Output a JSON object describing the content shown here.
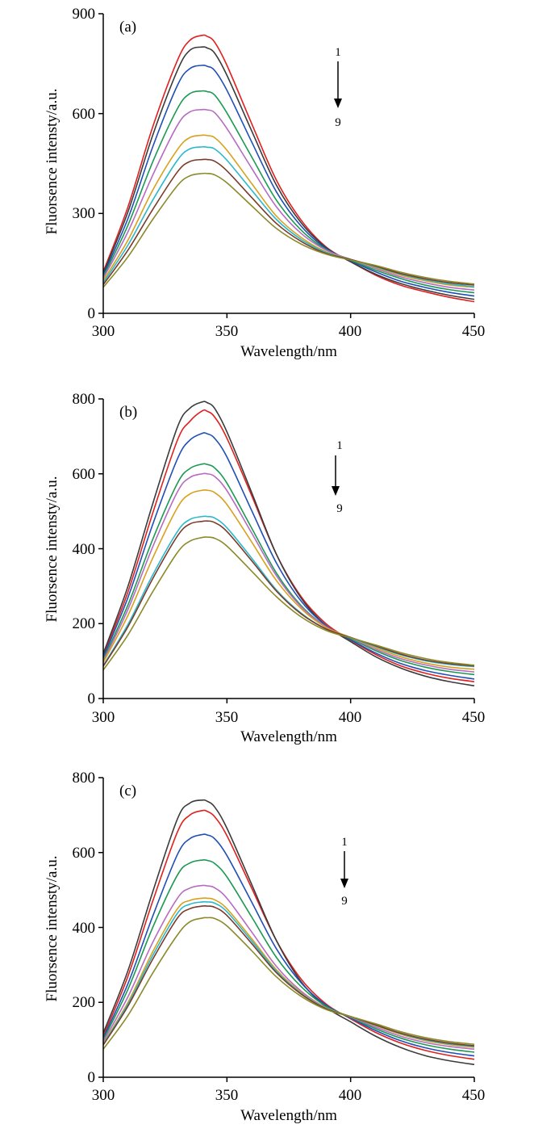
{
  "colors": [
    "#e0201f",
    "#3b3b3b",
    "#1f4fb5",
    "#1c9a52",
    "#b76ac2",
    "#d8a11d",
    "#2bb8cc",
    "#7a3b2a",
    "#8a8a2a"
  ],
  "chart_data": [
    {
      "type": "line",
      "panel_label": "(a)",
      "xlabel": "Wavelength/nm",
      "ylabel": "Fluorsence intensty/a.u.",
      "xlim": [
        300,
        450
      ],
      "ylim": [
        0,
        900
      ],
      "xticks": [
        "300",
        "350",
        "400",
        "450"
      ],
      "yticks": [
        "0",
        "300",
        "600",
        "900"
      ],
      "arrow": {
        "start": "1",
        "end": "9"
      },
      "x": [
        300,
        310,
        320,
        330,
        335,
        340,
        342,
        345,
        350,
        360,
        370,
        380,
        390,
        400,
        410,
        420,
        430,
        440,
        450
      ],
      "series": [
        {
          "values": [
            125,
            320,
            560,
            760,
            820,
            835,
            832,
            815,
            745,
            570,
            400,
            280,
            200,
            155,
            115,
            85,
            65,
            48,
            35
          ]
        },
        {
          "values": [
            120,
            305,
            535,
            730,
            790,
            800,
            797,
            782,
            715,
            548,
            385,
            272,
            198,
            155,
            118,
            90,
            70,
            54,
            42
          ]
        },
        {
          "values": [
            115,
            285,
            500,
            685,
            735,
            745,
            742,
            730,
            670,
            515,
            365,
            262,
            195,
            158,
            125,
            97,
            78,
            63,
            52
          ]
        },
        {
          "values": [
            110,
            265,
            455,
            615,
            660,
            668,
            666,
            656,
            602,
            470,
            340,
            250,
            192,
            160,
            130,
            105,
            85,
            71,
            62
          ]
        },
        {
          "values": [
            105,
            245,
            415,
            565,
            605,
            612,
            611,
            603,
            555,
            436,
            320,
            240,
            190,
            162,
            135,
            110,
            92,
            78,
            70
          ]
        },
        {
          "values": [
            98,
            220,
            370,
            492,
            528,
            535,
            534,
            528,
            490,
            390,
            292,
            228,
            185,
            162,
            138,
            115,
            98,
            85,
            78
          ]
        },
        {
          "values": [
            92,
            205,
            340,
            460,
            494,
            500,
            499,
            494,
            460,
            370,
            282,
            222,
            183,
            162,
            140,
            118,
            101,
            88,
            80
          ]
        },
        {
          "values": [
            86,
            190,
            312,
            425,
            456,
            462,
            462,
            457,
            428,
            348,
            270,
            216,
            180,
            162,
            142,
            120,
            104,
            92,
            85
          ]
        },
        {
          "values": [
            78,
            170,
            282,
            384,
            413,
            420,
            420,
            416,
            392,
            323,
            255,
            208,
            178,
            160,
            144,
            124,
            108,
            96,
            88
          ]
        }
      ]
    },
    {
      "type": "line",
      "panel_label": "(b)",
      "xlabel": "Wavelength/nm",
      "ylabel": "Fluorsence intensty/a.u.",
      "xlim": [
        300,
        450
      ],
      "ylim": [
        0,
        800
      ],
      "xticks": [
        "300",
        "350",
        "400",
        "450"
      ],
      "yticks": [
        "0",
        "200",
        "400",
        "600",
        "800"
      ],
      "arrow": {
        "start": "1",
        "end": "9"
      },
      "x": [
        300,
        310,
        320,
        330,
        335,
        340,
        342,
        345,
        350,
        360,
        370,
        380,
        390,
        400,
        410,
        420,
        430,
        440,
        450
      ],
      "series": [
        {
          "values": [
            115,
            285,
            495,
            690,
            740,
            768,
            767,
            752,
            695,
            542,
            385,
            272,
            200,
            156,
            118,
            88,
            68,
            54,
            45
          ]
        },
        {
          "values": [
            120,
            300,
            520,
            725,
            775,
            792,
            790,
            775,
            712,
            550,
            385,
            268,
            195,
            152,
            112,
            82,
            60,
            45,
            34
          ]
        },
        {
          "values": [
            110,
            270,
            465,
            640,
            690,
            708,
            707,
            695,
            645,
            502,
            362,
            260,
            195,
            157,
            122,
            94,
            75,
            62,
            52
          ]
        },
        {
          "values": [
            105,
            250,
            425,
            575,
            614,
            626,
            625,
            616,
            575,
            455,
            335,
            248,
            192,
            160,
            128,
            102,
            84,
            72,
            64
          ]
        },
        {
          "values": [
            100,
            238,
            405,
            552,
            590,
            600,
            600,
            593,
            555,
            442,
            328,
            245,
            192,
            162,
            132,
            107,
            90,
            78,
            71
          ]
        },
        {
          "values": [
            96,
            222,
            375,
            510,
            546,
            556,
            556,
            550,
            518,
            418,
            315,
            240,
            190,
            163,
            136,
            112,
            95,
            84,
            78
          ]
        },
        {
          "values": [
            88,
            198,
            330,
            446,
            478,
            486,
            486,
            482,
            456,
            375,
            290,
            228,
            186,
            162,
            139,
            117,
            101,
            91,
            85
          ]
        },
        {
          "values": [
            86,
            192,
            320,
            434,
            466,
            473,
            474,
            470,
            446,
            368,
            287,
            226,
            186,
            163,
            141,
            119,
            103,
            93,
            87
          ]
        },
        {
          "values": [
            76,
            170,
            285,
            390,
            420,
            430,
            431,
            428,
            407,
            340,
            272,
            218,
            182,
            162,
            143,
            123,
            107,
            96,
            89
          ]
        }
      ]
    },
    {
      "type": "line",
      "panel_label": "(c)",
      "xlabel": "Wavelength/nm",
      "ylabel": "Fluorsence intensty/a.u.",
      "xlim": [
        300,
        450
      ],
      "ylim": [
        0,
        800
      ],
      "xticks": [
        "300",
        "350",
        "400",
        "450"
      ],
      "yticks": [
        "0",
        "200",
        "400",
        "600",
        "800"
      ],
      "arrow": {
        "start": "1",
        "end": "9"
      },
      "x": [
        300,
        310,
        320,
        330,
        335,
        340,
        342,
        345,
        350,
        360,
        370,
        380,
        390,
        400,
        410,
        420,
        430,
        440,
        450
      ],
      "series": [
        {
          "values": [
            110,
            270,
            470,
            655,
            700,
            712,
            710,
            696,
            645,
            505,
            365,
            262,
            196,
            156,
            120,
            92,
            72,
            58,
            48
          ]
        },
        {
          "values": [
            118,
            285,
            495,
            690,
            732,
            740,
            737,
            722,
            665,
            515,
            365,
            255,
            188,
            148,
            110,
            80,
            58,
            44,
            34
          ]
        },
        {
          "values": [
            105,
            250,
            430,
            595,
            637,
            648,
            647,
            637,
            592,
            468,
            343,
            252,
            193,
            158,
            125,
            98,
            79,
            66,
            57
          ]
        },
        {
          "values": [
            100,
            235,
            400,
            540,
            572,
            580,
            579,
            571,
            535,
            428,
            320,
            242,
            190,
            160,
            130,
            105,
            87,
            75,
            67
          ]
        },
        {
          "values": [
            95,
            215,
            360,
            478,
            505,
            512,
            511,
            506,
            478,
            388,
            296,
            230,
            186,
            161,
            134,
            110,
            93,
            82,
            75
          ]
        },
        {
          "values": [
            90,
            200,
            335,
            450,
            472,
            478,
            478,
            474,
            450,
            370,
            287,
            226,
            185,
            162,
            138,
            115,
            98,
            87,
            80
          ]
        },
        {
          "values": [
            88,
            195,
            325,
            438,
            462,
            468,
            468,
            465,
            442,
            364,
            283,
            224,
            184,
            162,
            139,
            117,
            100,
            89,
            82
          ]
        },
        {
          "values": [
            86,
            190,
            315,
            425,
            450,
            457,
            457,
            454,
            432,
            357,
            279,
            222,
            183,
            162,
            140,
            118,
            102,
            91,
            84
          ]
        },
        {
          "values": [
            75,
            165,
            278,
            380,
            415,
            425,
            426,
            424,
            404,
            338,
            268,
            216,
            181,
            162,
            143,
            122,
            106,
            95,
            88
          ]
        }
      ]
    }
  ]
}
